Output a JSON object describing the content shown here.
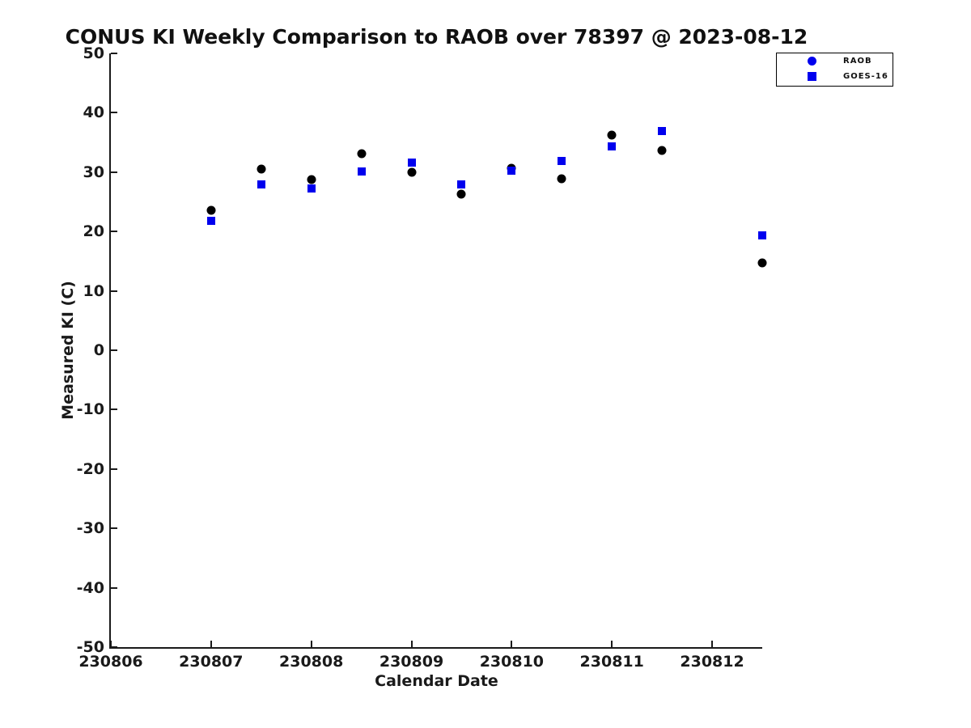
{
  "chart_data": {
    "type": "scatter",
    "title": "CONUS KI Weekly Comparison to RAOB over 78397 @ 2023-08-12",
    "xlabel": "Calendar Date",
    "ylabel": "Measured KI (C)",
    "xlim": [
      230806,
      230812.5
    ],
    "ylim": [
      -50,
      50
    ],
    "x_ticks": [
      230806,
      230807,
      230808,
      230809,
      230810,
      230811,
      230812
    ],
    "y_ticks": [
      50,
      40,
      30,
      20,
      10,
      0,
      -10,
      -20,
      -30,
      -40,
      -50
    ],
    "grid": false,
    "legend_position": "outside-top-right",
    "legend_marker_color": "#0000ee",
    "axis_color": "#1a1a1a",
    "background_color": "#ffffff",
    "series": [
      {
        "name": "RAOB",
        "marker": "circle",
        "data_color": "#000000",
        "x": [
          230807.0,
          230807.5,
          230808.0,
          230808.5,
          230809.0,
          230809.5,
          230810.0,
          230810.5,
          230811.0,
          230811.5,
          230812.5
        ],
        "y": [
          23.6,
          30.5,
          28.8,
          33.1,
          30.0,
          26.3,
          30.6,
          28.9,
          36.2,
          33.7,
          14.7
        ]
      },
      {
        "name": "GOES-16",
        "marker": "square",
        "data_color": "#0000ee",
        "x": [
          230807.0,
          230807.5,
          230808.0,
          230808.5,
          230809.0,
          230809.5,
          230810.0,
          230810.5,
          230811.0,
          230811.5,
          230812.5
        ],
        "y": [
          21.8,
          27.9,
          27.2,
          30.1,
          31.6,
          27.9,
          30.3,
          31.9,
          34.3,
          36.9,
          19.4
        ]
      }
    ]
  }
}
